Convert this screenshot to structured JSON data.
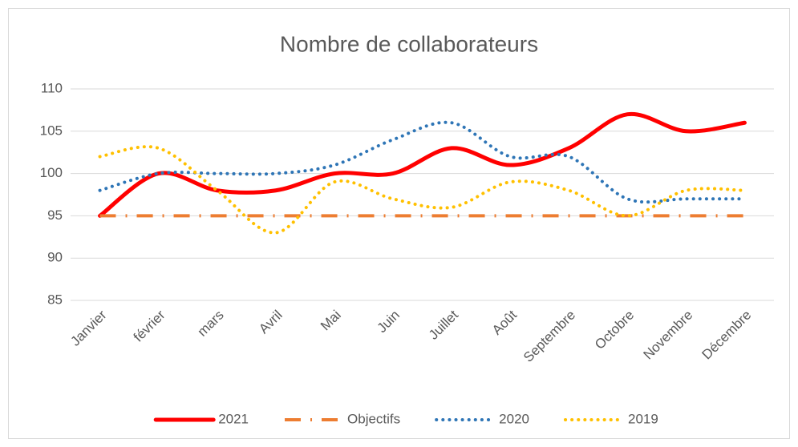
{
  "chart_data": {
    "type": "line",
    "title": "Nombre de collaborateurs",
    "categories": [
      "Janvier",
      "février",
      "mars",
      "Avril",
      "Mai",
      "Juin",
      "Juillet",
      "Août",
      "Septembre",
      "Octobre",
      "Novembre",
      "Décembre"
    ],
    "series": [
      {
        "name": "2021",
        "color": "#ff0000",
        "line_style": "solid",
        "values": [
          95,
          100,
          98,
          98,
          100,
          100,
          103,
          101,
          103,
          107,
          105,
          106
        ]
      },
      {
        "name": "Objectifs",
        "color": "#ed7d31",
        "line_style": "dashdot",
        "values": [
          95,
          95,
          95,
          95,
          95,
          95,
          95,
          95,
          95,
          95,
          95,
          95
        ]
      },
      {
        "name": "2020",
        "color": "#2e75b6",
        "line_style": "dotted",
        "values": [
          98,
          100,
          100,
          100,
          101,
          104,
          106,
          102,
          102,
          97,
          97,
          97
        ]
      },
      {
        "name": "2019",
        "color": "#ffc000",
        "line_style": "dotted",
        "values": [
          102,
          103,
          98,
          93,
          99,
          97,
          96,
          99,
          98,
          95,
          98,
          98
        ]
      }
    ],
    "ylim": [
      85,
      110
    ],
    "yticks": [
      85,
      90,
      95,
      100,
      105,
      110
    ],
    "grid": true,
    "smooth": true,
    "legend": "bottom"
  }
}
